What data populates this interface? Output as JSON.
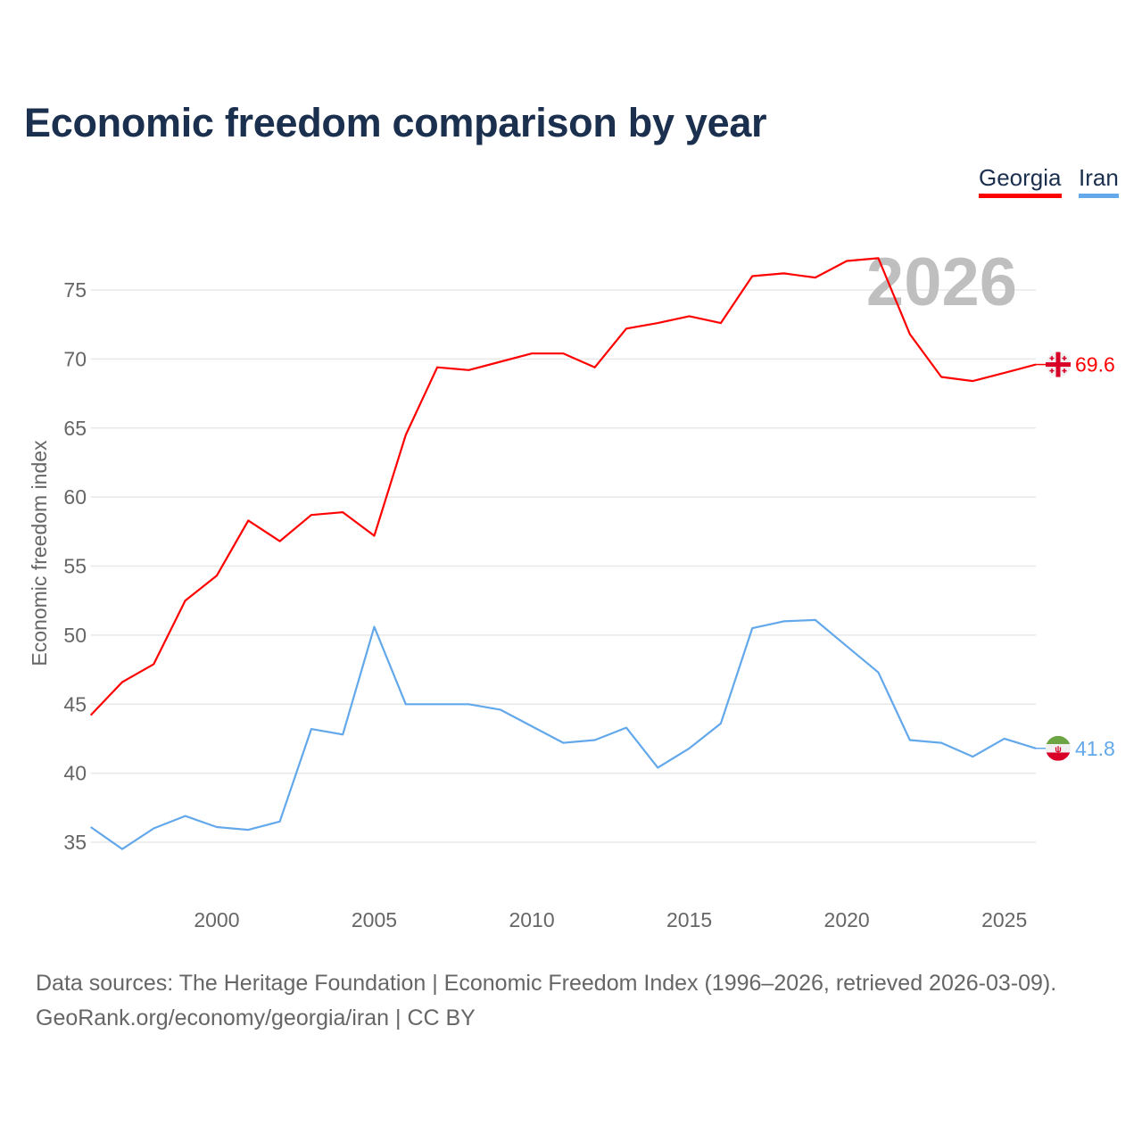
{
  "title": "Economic freedom comparison by year",
  "footer": {
    "line1": "Data sources: The Heritage Foundation | Economic Freedom Index (1996–2026, retrieved 2026-03-09).",
    "line2": "GeoRank.org/economy/georgia/iran | CC BY"
  },
  "chart_data": {
    "type": "line",
    "title": "Economic freedom comparison by year",
    "xlabel": "",
    "ylabel": "Economic freedom index",
    "xlim": [
      1996,
      2026
    ],
    "ylim": [
      31,
      79
    ],
    "x_ticks": [
      2000,
      2005,
      2010,
      2015,
      2020,
      2025
    ],
    "y_ticks": [
      35,
      40,
      45,
      50,
      55,
      60,
      65,
      70,
      75
    ],
    "grid": true,
    "legend_position": "top-right",
    "year_watermark": "2026",
    "x": [
      1996,
      1997,
      1998,
      1999,
      2000,
      2001,
      2002,
      2003,
      2004,
      2005,
      2006,
      2007,
      2008,
      2009,
      2010,
      2011,
      2012,
      2013,
      2014,
      2015,
      2016,
      2017,
      2018,
      2019,
      2020,
      2021,
      2022,
      2023,
      2024,
      2025,
      2026
    ],
    "series": [
      {
        "name": "Georgia",
        "color": "#ff0000",
        "end_label": "69.6",
        "flag": "georgia-flag",
        "values": [
          44.2,
          46.6,
          47.9,
          52.5,
          54.3,
          58.3,
          56.8,
          58.7,
          58.9,
          57.2,
          64.5,
          69.4,
          69.2,
          69.8,
          70.4,
          70.4,
          69.4,
          72.2,
          72.6,
          73.1,
          72.6,
          76.0,
          76.2,
          75.9,
          77.1,
          77.3,
          71.8,
          68.7,
          68.4,
          69.0,
          69.6
        ]
      },
      {
        "name": "Iran",
        "color": "#62a8ea",
        "end_label": "41.8",
        "flag": "iran-flag",
        "values": [
          36.1,
          34.5,
          36.0,
          36.9,
          36.1,
          35.9,
          36.5,
          43.2,
          42.8,
          50.6,
          45.0,
          45.0,
          45.0,
          44.6,
          43.4,
          42.2,
          42.4,
          43.3,
          40.4,
          41.8,
          43.6,
          50.5,
          51.0,
          51.1,
          49.2,
          47.3,
          42.4,
          42.2,
          41.2,
          42.5,
          41.8
        ]
      }
    ]
  }
}
